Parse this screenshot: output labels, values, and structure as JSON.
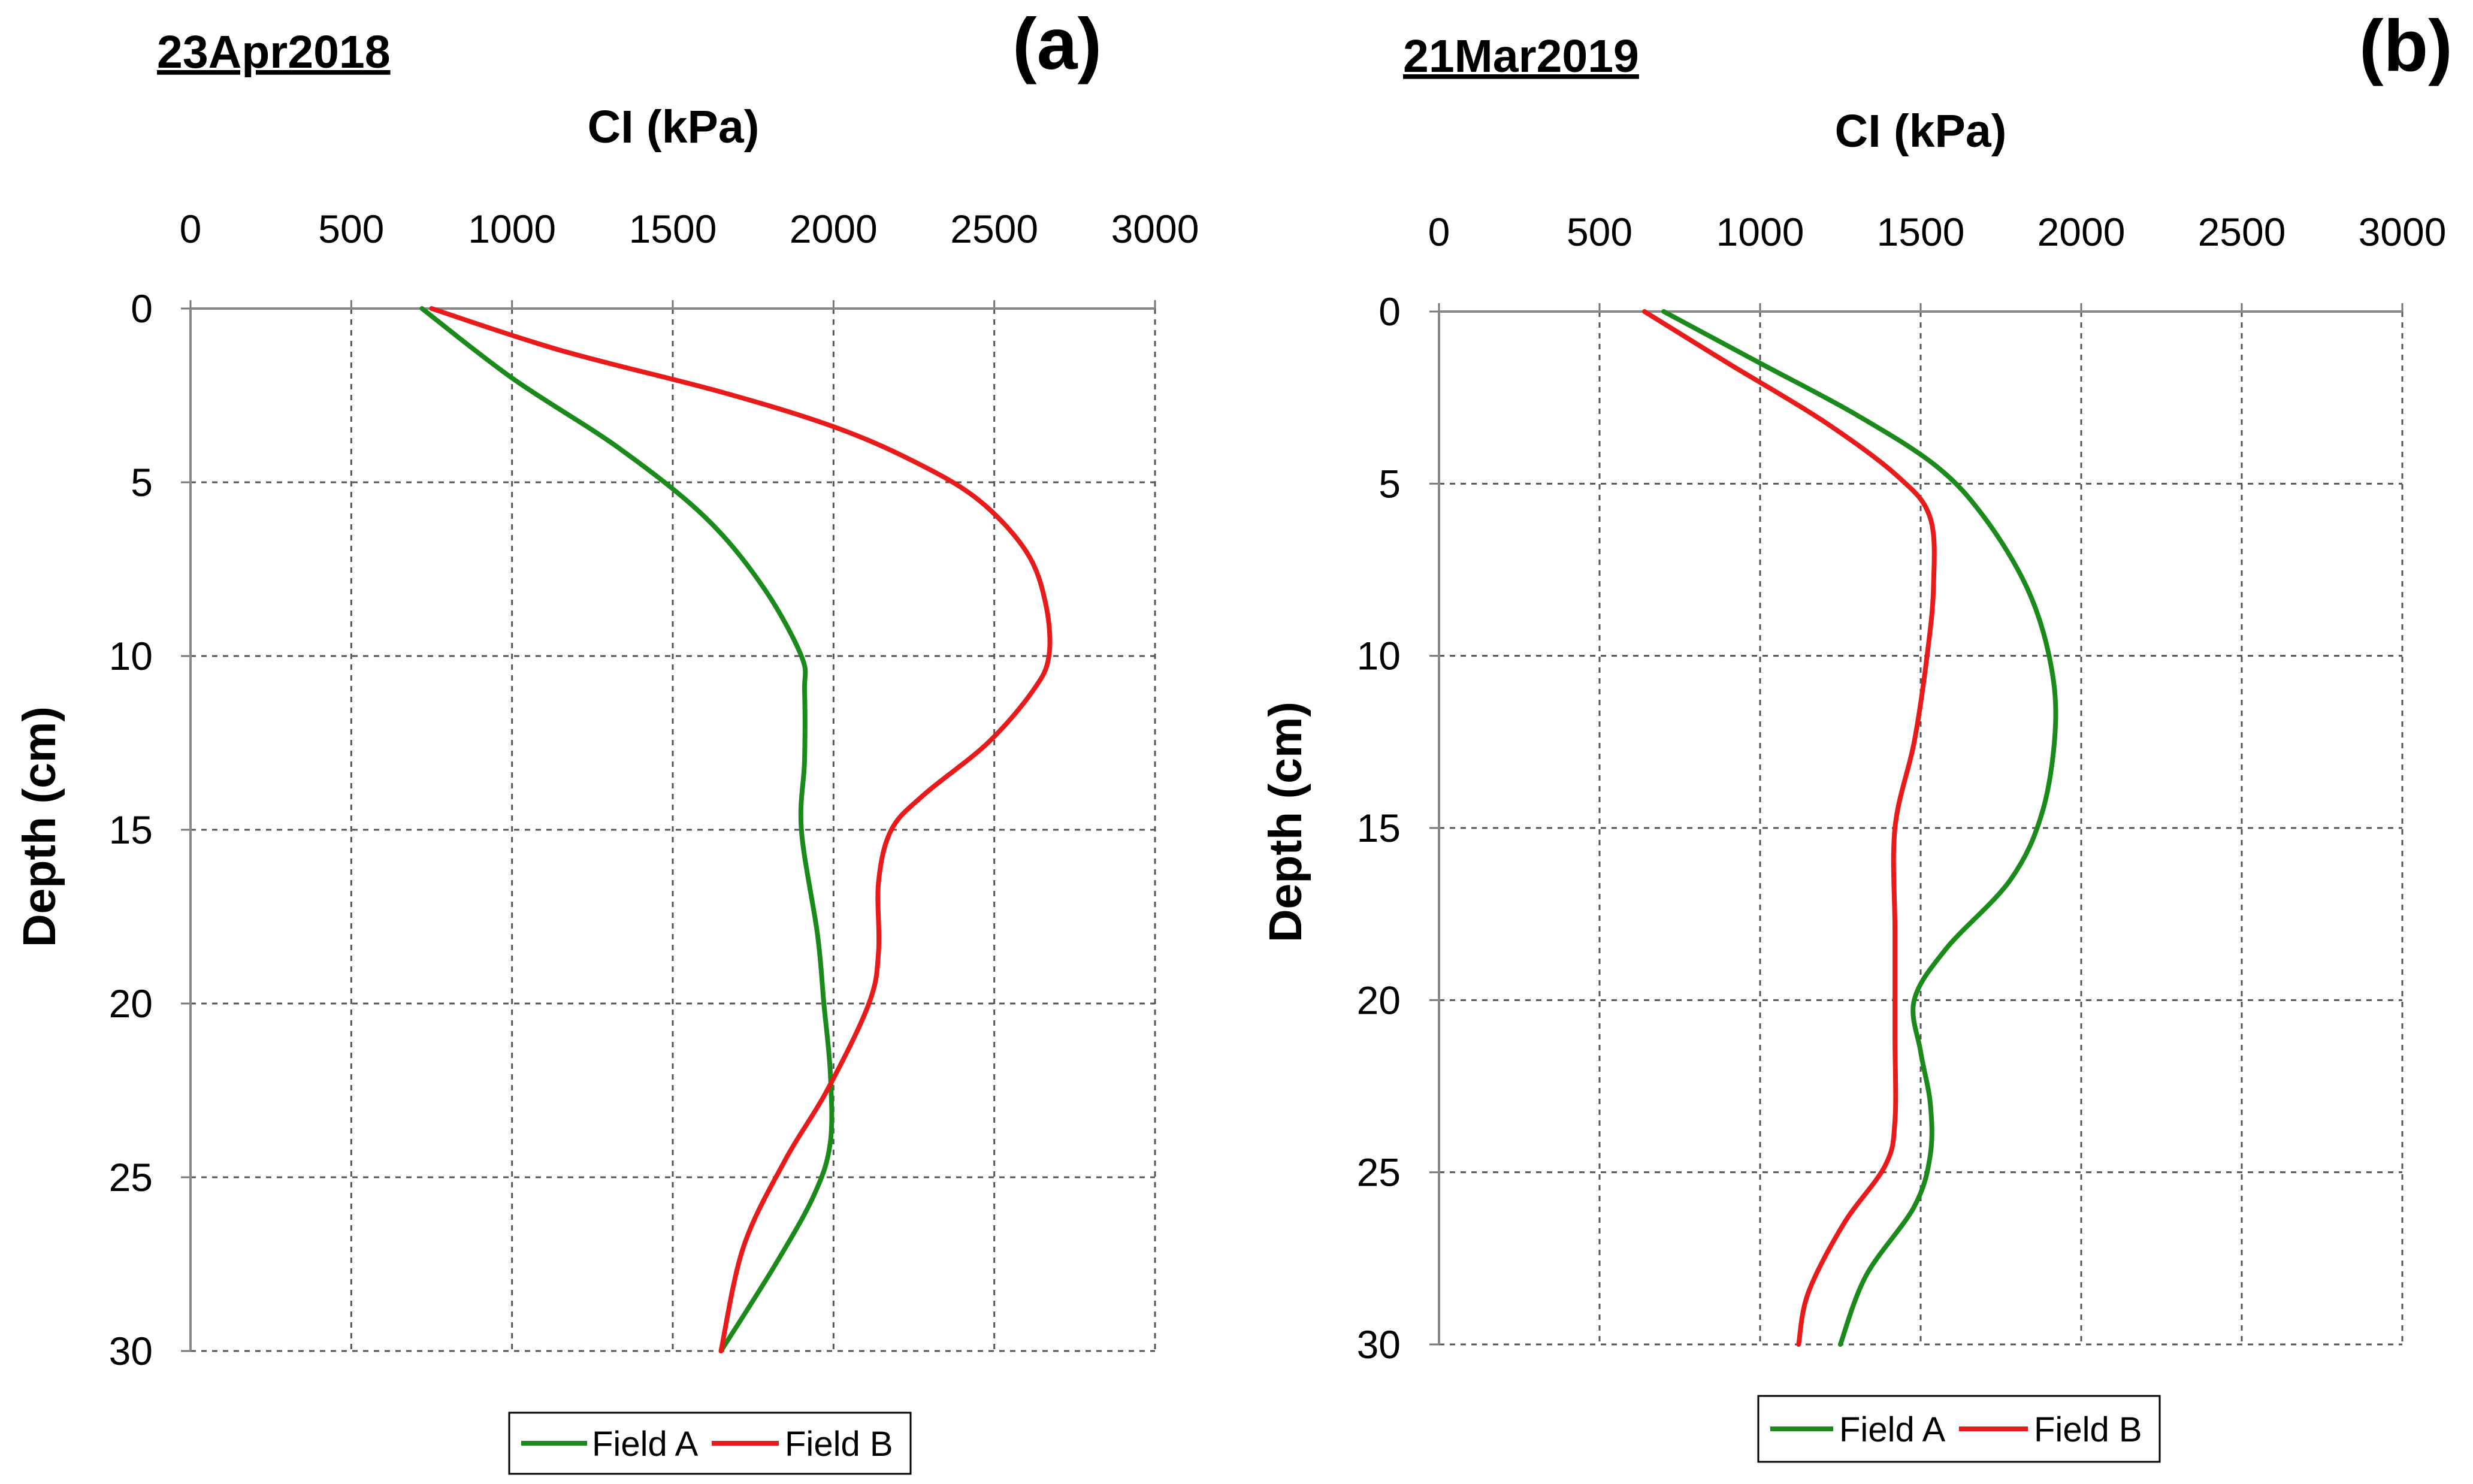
{
  "chart_data": [
    {
      "type": "line",
      "panel_label": "(a)",
      "date_label": "23Apr2018",
      "title": "CI (kPa)",
      "xlabel": "CI (kPa)",
      "ylabel": "Depth (cm)",
      "xlim": [
        0,
        3000
      ],
      "ylim": [
        0,
        30
      ],
      "x_ticks": [
        "0",
        "500",
        "1000",
        "1500",
        "2000",
        "2500",
        "3000"
      ],
      "y_ticks": [
        "0",
        "5",
        "10",
        "15",
        "20",
        "25",
        "30"
      ],
      "grid": true,
      "legend_position": "bottom",
      "series": [
        {
          "name": "Field A",
          "color": "#1a8a1a",
          "points": [
            [
              720,
              0
            ],
            [
              1000,
              2
            ],
            [
              1330,
              4
            ],
            [
              1600,
              6
            ],
            [
              1780,
              8
            ],
            [
              1900,
              10
            ],
            [
              1910,
              11
            ],
            [
              1910,
              13
            ],
            [
              1900,
              15
            ],
            [
              1950,
              18
            ],
            [
              1970,
              20
            ],
            [
              1990,
              22
            ],
            [
              1990,
              24
            ],
            [
              1940,
              25.5
            ],
            [
              1820,
              27.5
            ],
            [
              1650,
              30
            ]
          ]
        },
        {
          "name": "Field B",
          "color": "#e81a1a",
          "points": [
            [
              750,
              0
            ],
            [
              1150,
              1.2
            ],
            [
              1650,
              2.4
            ],
            [
              2000,
              3.4
            ],
            [
              2250,
              4.4
            ],
            [
              2450,
              5.5
            ],
            [
              2600,
              7
            ],
            [
              2660,
              8.5
            ],
            [
              2670,
              10
            ],
            [
              2620,
              11
            ],
            [
              2480,
              12.5
            ],
            [
              2280,
              14
            ],
            [
              2180,
              15
            ],
            [
              2140,
              16.5
            ],
            [
              2140,
              18.5
            ],
            [
              2110,
              20
            ],
            [
              1980,
              22.5
            ],
            [
              1850,
              24.5
            ],
            [
              1720,
              27
            ],
            [
              1650,
              30
            ]
          ]
        }
      ]
    },
    {
      "type": "line",
      "panel_label": "(b)",
      "date_label": "21Mar2019",
      "title": "CI (kPa)",
      "xlabel": "CI (kPa)",
      "ylabel": "Depth (cm)",
      "xlim": [
        0,
        3000
      ],
      "ylim": [
        0,
        30
      ],
      "x_ticks": [
        "0",
        "500",
        "1000",
        "1500",
        "2000",
        "2500",
        "3000"
      ],
      "y_ticks": [
        "0",
        "5",
        "10",
        "15",
        "20",
        "25",
        "30"
      ],
      "grid": true,
      "legend_position": "bottom",
      "series": [
        {
          "name": "Field A",
          "color": "#1a8a1a",
          "points": [
            [
              700,
              0
            ],
            [
              1000,
              1.5
            ],
            [
              1300,
              3
            ],
            [
              1550,
              4.5
            ],
            [
              1700,
              6
            ],
            [
              1830,
              8
            ],
            [
              1900,
              10
            ],
            [
              1920,
              12
            ],
            [
              1880,
              14.5
            ],
            [
              1780,
              16.5
            ],
            [
              1580,
              18.5
            ],
            [
              1480,
              20
            ],
            [
              1500,
              21.5
            ],
            [
              1530,
              23
            ],
            [
              1530,
              24.5
            ],
            [
              1480,
              26
            ],
            [
              1330,
              28
            ],
            [
              1250,
              30
            ]
          ]
        },
        {
          "name": "Field B",
          "color": "#e81a1a",
          "points": [
            [
              640,
              0
            ],
            [
              900,
              1.5
            ],
            [
              1200,
              3.2
            ],
            [
              1430,
              4.8
            ],
            [
              1530,
              6
            ],
            [
              1540,
              8
            ],
            [
              1520,
              10
            ],
            [
              1480,
              12.5
            ],
            [
              1420,
              15
            ],
            [
              1420,
              18
            ],
            [
              1420,
              21
            ],
            [
              1420,
              23.5
            ],
            [
              1390,
              24.8
            ],
            [
              1260,
              26.5
            ],
            [
              1150,
              28.5
            ],
            [
              1120,
              30
            ]
          ]
        }
      ]
    }
  ]
}
